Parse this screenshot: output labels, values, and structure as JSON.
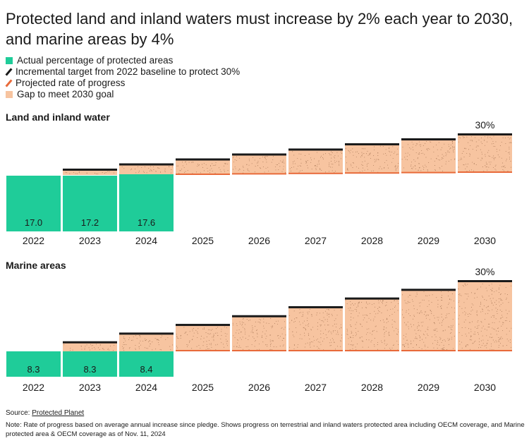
{
  "title": "Protected land and inland waters must increase by 2% each year to 2030, and marine areas by 4%",
  "legend": [
    {
      "label": "Actual percentage of protected areas",
      "kind": "square",
      "color": "#1fcc99"
    },
    {
      "label": "Incremental target from 2022 baseline to protect 30%",
      "kind": "slash",
      "color": "#1a1a1a"
    },
    {
      "label": "Projected rate of progress",
      "kind": "slash",
      "color": "#e86a3a"
    },
    {
      "label": "Gap to meet 2030 goal",
      "kind": "square",
      "color": "#f7c4a0"
    }
  ],
  "colors": {
    "actual": "#1fcc99",
    "target": "#1a1a1a",
    "projected": "#e86a3a",
    "gap": "#f7c4a0",
    "speck": "#9a6a4a"
  },
  "chart_data": [
    {
      "type": "bar",
      "title": "Land and inland water",
      "categories": [
        "2022",
        "2023",
        "2024",
        "2025",
        "2026",
        "2027",
        "2028",
        "2029",
        "2030"
      ],
      "actual": [
        17.0,
        17.2,
        17.6,
        null,
        null,
        null,
        null,
        null,
        null
      ],
      "actual_labels": [
        "17.0",
        "17.2",
        "17.6"
      ],
      "target": [
        17.0,
        18.6,
        20.3,
        21.9,
        23.5,
        25.1,
        26.8,
        28.4,
        30.0
      ],
      "projected": [
        17.0,
        17.3,
        17.6,
        17.9,
        18.2,
        18.5,
        18.8,
        19.1,
        19.4
      ],
      "end_label": "30%",
      "ylim": [
        0,
        30
      ]
    },
    {
      "type": "bar",
      "title": "Marine areas",
      "categories": [
        "2022",
        "2023",
        "2024",
        "2025",
        "2026",
        "2027",
        "2028",
        "2029",
        "2030"
      ],
      "actual": [
        8.3,
        8.3,
        8.4,
        null,
        null,
        null,
        null,
        null,
        null
      ],
      "actual_labels": [
        "8.3",
        "8.3",
        "8.4"
      ],
      "target": [
        8.3,
        11.0,
        13.7,
        16.4,
        19.1,
        21.9,
        24.6,
        27.3,
        30.0
      ],
      "projected": [
        8.3,
        8.3,
        8.4,
        8.4,
        8.5,
        8.5,
        8.6,
        8.6,
        8.7
      ],
      "end_label": "30%",
      "ylim": [
        0,
        30
      ]
    }
  ],
  "source_label": "Source: ",
  "source_link": "Protected Planet",
  "note": "Note: Rate of progress based on average annual increase since pledge. Shows progress on terrestrial and inland waters protected area including OECM coverage, and Marine protected area & OECM coverage as of Nov. 11, 2024"
}
